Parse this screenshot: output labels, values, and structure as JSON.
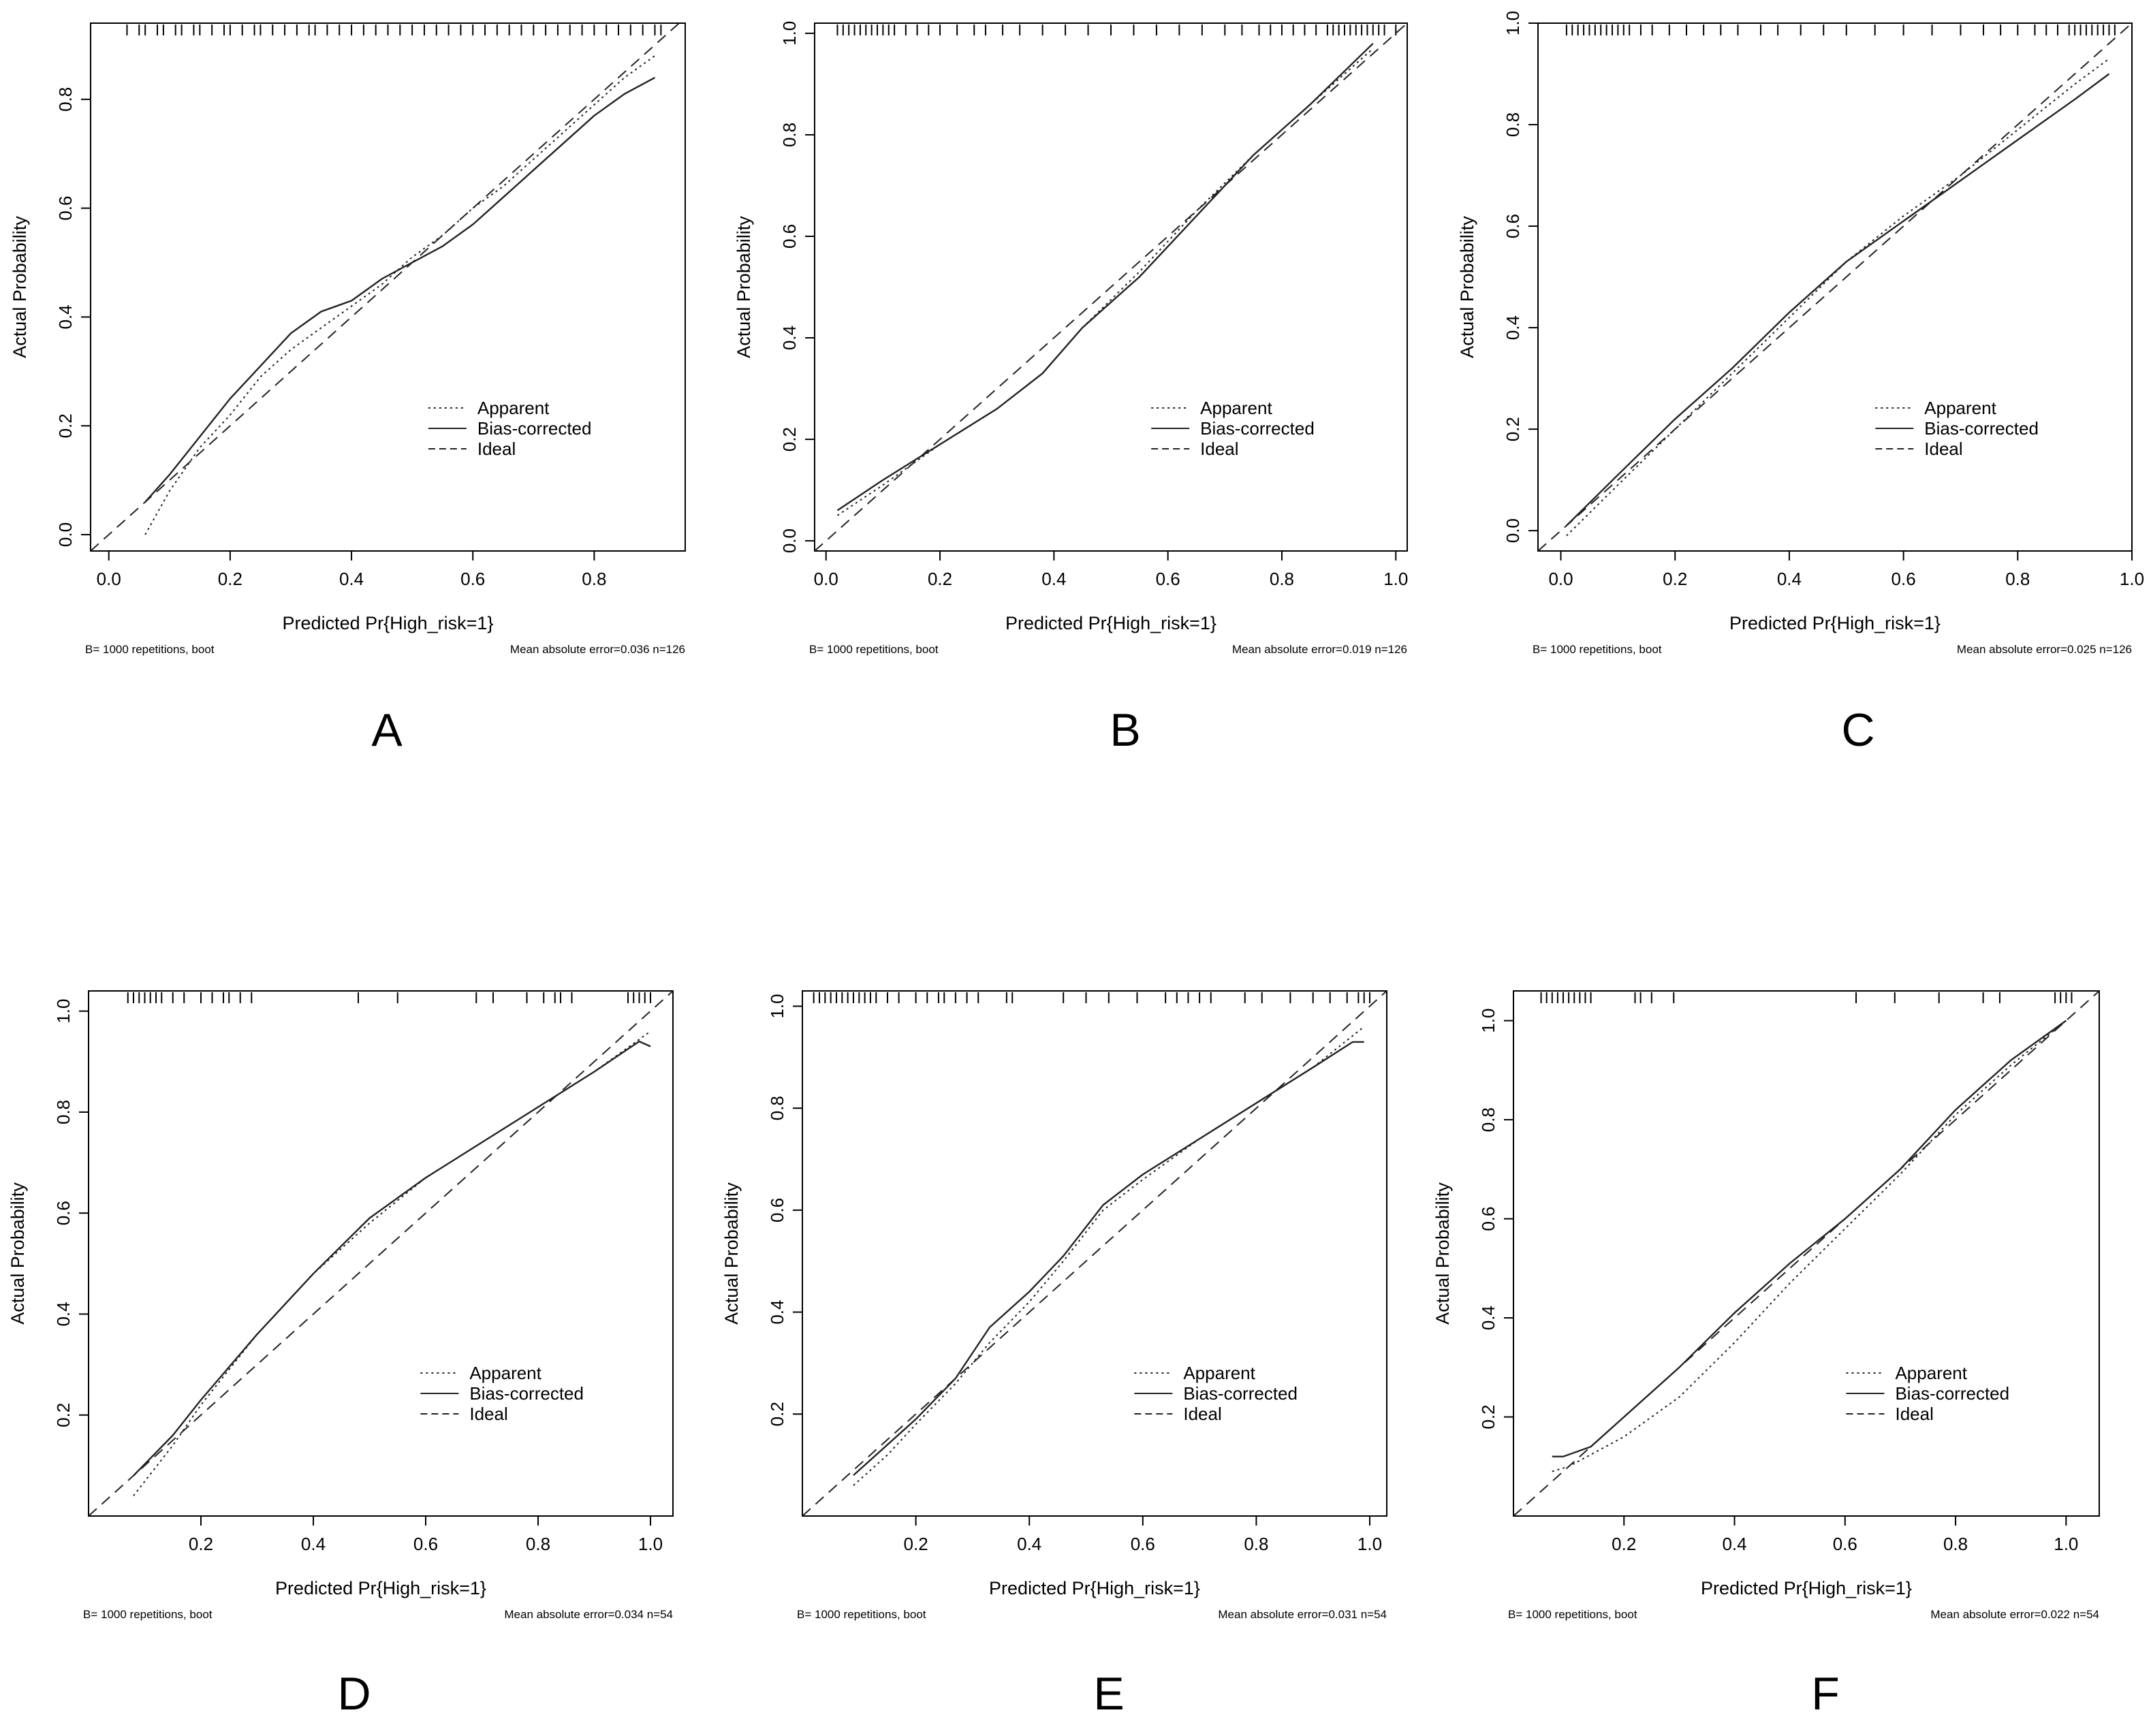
{
  "figure": {
    "ticks_rug_note": "rug ticks along top show predicted values",
    "panels_caption": "calibration curves"
  },
  "chart_data": [
    {
      "type": "line",
      "panel_label": "A",
      "xlabel": "Predicted Pr{High_risk=1}",
      "ylabel": "Actual Probability",
      "xlim": [
        -0.03,
        0.95
      ],
      "ylim": [
        -0.03,
        0.94
      ],
      "xticks": [
        "0.0",
        "0.2",
        "0.4",
        "0.6",
        "0.8"
      ],
      "yticks": [
        "0.0",
        "0.2",
        "0.4",
        "0.6",
        "0.8"
      ],
      "xtick_values": [
        0,
        0.2,
        0.4,
        0.6,
        0.8
      ],
      "ytick_values": [
        0,
        0.2,
        0.4,
        0.6,
        0.8
      ],
      "legend": [
        "Apparent",
        "Bias-corrected",
        "Ideal"
      ],
      "footer_left": "B= 1000 repetitions, boot",
      "footer_right": "Mean absolute error=0.036 n=126",
      "series": [
        {
          "name": "Apparent",
          "style": "dotted",
          "x": [
            0.06,
            0.1,
            0.15,
            0.2,
            0.25,
            0.3,
            0.35,
            0.4,
            0.45,
            0.5,
            0.55,
            0.6,
            0.65,
            0.7,
            0.75,
            0.8,
            0.85,
            0.9
          ],
          "y": [
            0.0,
            0.08,
            0.16,
            0.22,
            0.29,
            0.34,
            0.38,
            0.42,
            0.46,
            0.51,
            0.55,
            0.6,
            0.64,
            0.69,
            0.74,
            0.79,
            0.84,
            0.88
          ]
        },
        {
          "name": "Bias-corrected",
          "style": "solid",
          "x": [
            0.06,
            0.1,
            0.15,
            0.2,
            0.25,
            0.3,
            0.35,
            0.4,
            0.45,
            0.5,
            0.55,
            0.6,
            0.65,
            0.7,
            0.75,
            0.8,
            0.85,
            0.9
          ],
          "y": [
            0.06,
            0.11,
            0.18,
            0.25,
            0.31,
            0.37,
            0.41,
            0.43,
            0.47,
            0.5,
            0.53,
            0.57,
            0.62,
            0.67,
            0.72,
            0.77,
            0.81,
            0.84
          ]
        },
        {
          "name": "Ideal",
          "style": "dashed",
          "x": [
            -0.03,
            0.94
          ],
          "y": [
            -0.03,
            0.94
          ]
        }
      ],
      "rug": [
        0.03,
        0.05,
        0.06,
        0.08,
        0.09,
        0.11,
        0.12,
        0.14,
        0.15,
        0.17,
        0.19,
        0.2,
        0.22,
        0.24,
        0.25,
        0.27,
        0.29,
        0.31,
        0.33,
        0.34,
        0.36,
        0.38,
        0.4,
        0.42,
        0.44,
        0.46,
        0.48,
        0.5,
        0.52,
        0.54,
        0.56,
        0.58,
        0.6,
        0.62,
        0.64,
        0.66,
        0.68,
        0.7,
        0.72,
        0.74,
        0.76,
        0.78,
        0.8,
        0.82,
        0.84,
        0.86,
        0.88,
        0.9,
        0.91
      ]
    },
    {
      "type": "line",
      "panel_label": "B",
      "xlabel": "Predicted Pr{High_risk=1}",
      "ylabel": "Actual Probability",
      "xlim": [
        -0.02,
        1.02
      ],
      "ylim": [
        -0.02,
        1.02
      ],
      "xticks": [
        "0.0",
        "0.2",
        "0.4",
        "0.6",
        "0.8",
        "1.0"
      ],
      "yticks": [
        "0.0",
        "0.2",
        "0.4",
        "0.6",
        "0.8",
        "1.0"
      ],
      "xtick_values": [
        0,
        0.2,
        0.4,
        0.6,
        0.8,
        1.0
      ],
      "ytick_values": [
        0,
        0.2,
        0.4,
        0.6,
        0.8,
        1.0
      ],
      "legend": [
        "Apparent",
        "Bias-corrected",
        "Ideal"
      ],
      "footer_left": "B= 1000 repetitions, boot",
      "footer_right": "Mean absolute error=0.019 n=126",
      "series": [
        {
          "name": "Apparent",
          "style": "dotted",
          "x": [
            0.02,
            0.1,
            0.2,
            0.3,
            0.38,
            0.45,
            0.55,
            0.65,
            0.75,
            0.85,
            0.96
          ],
          "y": [
            0.05,
            0.11,
            0.19,
            0.26,
            0.33,
            0.42,
            0.53,
            0.65,
            0.76,
            0.86,
            0.97
          ]
        },
        {
          "name": "Bias-corrected",
          "style": "solid",
          "x": [
            0.02,
            0.1,
            0.2,
            0.3,
            0.38,
            0.45,
            0.55,
            0.65,
            0.75,
            0.85,
            0.96
          ],
          "y": [
            0.06,
            0.12,
            0.19,
            0.26,
            0.33,
            0.42,
            0.52,
            0.64,
            0.76,
            0.86,
            0.98
          ]
        },
        {
          "name": "Ideal",
          "style": "dashed",
          "x": [
            -0.02,
            1.02
          ],
          "y": [
            -0.02,
            1.02
          ]
        }
      ],
      "rug": [
        0.02,
        0.03,
        0.04,
        0.05,
        0.06,
        0.07,
        0.08,
        0.09,
        0.1,
        0.11,
        0.12,
        0.14,
        0.16,
        0.18,
        0.2,
        0.23,
        0.26,
        0.28,
        0.31,
        0.34,
        0.38,
        0.42,
        0.46,
        0.5,
        0.54,
        0.58,
        0.62,
        0.66,
        0.7,
        0.73,
        0.76,
        0.78,
        0.8,
        0.82,
        0.84,
        0.86,
        0.88,
        0.89,
        0.9,
        0.91,
        0.92,
        0.93,
        0.94,
        0.95,
        0.96,
        0.97,
        0.98,
        1.0
      ]
    },
    {
      "type": "line",
      "panel_label": "C",
      "xlabel": "Predicted Pr{High_risk=1}",
      "ylabel": "Actual Probability",
      "xlim": [
        -0.04,
        1.0
      ],
      "ylim": [
        -0.04,
        1.0
      ],
      "xticks": [
        "0.0",
        "0.2",
        "0.4",
        "0.6",
        "0.8",
        "1.0"
      ],
      "yticks": [
        "0.0",
        "0.2",
        "0.4",
        "0.6",
        "0.8",
        "1.0"
      ],
      "xtick_values": [
        0,
        0.2,
        0.4,
        0.6,
        0.8,
        1.0
      ],
      "ytick_values": [
        0,
        0.2,
        0.4,
        0.6,
        0.8,
        1.0
      ],
      "legend": [
        "Apparent",
        "Bias-corrected",
        "Ideal"
      ],
      "footer_left": "B= 1000 repetitions, boot",
      "footer_right": "Mean absolute error=0.025 n=126",
      "series": [
        {
          "name": "Apparent",
          "style": "dotted",
          "x": [
            0.01,
            0.1,
            0.2,
            0.3,
            0.4,
            0.5,
            0.6,
            0.7,
            0.8,
            0.9,
            0.96
          ],
          "y": [
            -0.01,
            0.09,
            0.2,
            0.31,
            0.42,
            0.53,
            0.62,
            0.7,
            0.79,
            0.88,
            0.93
          ]
        },
        {
          "name": "Bias-corrected",
          "style": "solid",
          "x": [
            0.01,
            0.1,
            0.2,
            0.3,
            0.4,
            0.5,
            0.6,
            0.7,
            0.8,
            0.9,
            0.96
          ],
          "y": [
            0.01,
            0.11,
            0.22,
            0.32,
            0.43,
            0.53,
            0.61,
            0.69,
            0.77,
            0.85,
            0.9
          ]
        },
        {
          "name": "Ideal",
          "style": "dashed",
          "x": [
            -0.04,
            1.0
          ],
          "y": [
            -0.04,
            1.0
          ]
        }
      ],
      "rug": [
        0.01,
        0.02,
        0.03,
        0.04,
        0.05,
        0.06,
        0.07,
        0.08,
        0.09,
        0.1,
        0.11,
        0.12,
        0.14,
        0.16,
        0.19,
        0.22,
        0.25,
        0.28,
        0.31,
        0.35,
        0.38,
        0.42,
        0.46,
        0.5,
        0.55,
        0.6,
        0.65,
        0.7,
        0.74,
        0.77,
        0.8,
        0.83,
        0.85,
        0.87,
        0.89,
        0.9,
        0.91,
        0.92,
        0.93,
        0.94,
        0.95,
        0.96,
        0.97
      ]
    },
    {
      "type": "line",
      "panel_label": "D",
      "xlabel": "Predicted Pr{High_risk=1}",
      "ylabel": "Actual Probability",
      "xlim": [
        0.0,
        1.04
      ],
      "ylim": [
        0.0,
        1.04
      ],
      "xticks": [
        "0.2",
        "0.4",
        "0.6",
        "0.8",
        "1.0"
      ],
      "yticks": [
        "0.2",
        "0.4",
        "0.6",
        "0.8",
        "1.0"
      ],
      "xtick_values": [
        0.2,
        0.4,
        0.6,
        0.8,
        1.0
      ],
      "ytick_values": [
        0.2,
        0.4,
        0.6,
        0.8,
        1.0
      ],
      "legend": [
        "Apparent",
        "Bias-corrected",
        "Ideal"
      ],
      "footer_left": "B= 1000 repetitions, boot",
      "footer_right": "Mean absolute error=0.034 n=54",
      "series": [
        {
          "name": "Apparent",
          "style": "dotted",
          "x": [
            0.08,
            0.15,
            0.2,
            0.3,
            0.4,
            0.5,
            0.6,
            0.7,
            0.8,
            0.9,
            1.0
          ],
          "y": [
            0.04,
            0.14,
            0.22,
            0.36,
            0.48,
            0.58,
            0.67,
            0.74,
            0.81,
            0.88,
            0.96
          ]
        },
        {
          "name": "Bias-corrected",
          "style": "solid",
          "x": [
            0.08,
            0.15,
            0.2,
            0.3,
            0.4,
            0.5,
            0.6,
            0.7,
            0.8,
            0.9,
            0.98,
            1.0
          ],
          "y": [
            0.08,
            0.16,
            0.23,
            0.36,
            0.48,
            0.59,
            0.67,
            0.74,
            0.81,
            0.88,
            0.94,
            0.93
          ]
        },
        {
          "name": "Ideal",
          "style": "dashed",
          "x": [
            0.0,
            1.04
          ],
          "y": [
            0.0,
            1.04
          ]
        }
      ],
      "rug": [
        0.07,
        0.08,
        0.09,
        0.1,
        0.11,
        0.12,
        0.13,
        0.15,
        0.17,
        0.2,
        0.22,
        0.24,
        0.25,
        0.27,
        0.29,
        0.48,
        0.55,
        0.69,
        0.72,
        0.78,
        0.81,
        0.83,
        0.84,
        0.86,
        0.96,
        0.97,
        0.98,
        0.99,
        1.0
      ]
    },
    {
      "type": "line",
      "panel_label": "E",
      "xlabel": "Predicted Pr{High_risk=1}",
      "ylabel": "Actual Probability",
      "xlim": [
        0.0,
        1.03
      ],
      "ylim": [
        0.0,
        1.03
      ],
      "xticks": [
        "0.2",
        "0.4",
        "0.6",
        "0.8",
        "1.0"
      ],
      "yticks": [
        "0.2",
        "0.4",
        "0.6",
        "0.8",
        "1.0"
      ],
      "xtick_values": [
        0.2,
        0.4,
        0.6,
        0.8,
        1.0
      ],
      "ytick_values": [
        0.2,
        0.4,
        0.6,
        0.8,
        1.0
      ],
      "legend": [
        "Apparent",
        "Bias-corrected",
        "Ideal"
      ],
      "footer_left": "B= 1000 repetitions, boot",
      "footer_right": "Mean absolute error=0.031 n=54",
      "series": [
        {
          "name": "Apparent",
          "style": "dotted",
          "x": [
            0.09,
            0.15,
            0.2,
            0.27,
            0.33,
            0.4,
            0.46,
            0.53,
            0.6,
            0.7,
            0.8,
            0.9,
            0.99
          ],
          "y": [
            0.06,
            0.12,
            0.18,
            0.26,
            0.34,
            0.42,
            0.5,
            0.6,
            0.66,
            0.74,
            0.81,
            0.88,
            0.96
          ]
        },
        {
          "name": "Bias-corrected",
          "style": "solid",
          "x": [
            0.09,
            0.15,
            0.2,
            0.27,
            0.33,
            0.4,
            0.46,
            0.53,
            0.6,
            0.7,
            0.8,
            0.9,
            0.97,
            0.99
          ],
          "y": [
            0.08,
            0.14,
            0.19,
            0.27,
            0.37,
            0.44,
            0.51,
            0.61,
            0.67,
            0.74,
            0.81,
            0.88,
            0.93,
            0.93
          ]
        },
        {
          "name": "Ideal",
          "style": "dashed",
          "x": [
            0.0,
            1.03
          ],
          "y": [
            0.0,
            1.03
          ]
        }
      ],
      "rug": [
        0.02,
        0.03,
        0.04,
        0.05,
        0.06,
        0.07,
        0.08,
        0.09,
        0.1,
        0.11,
        0.12,
        0.13,
        0.15,
        0.17,
        0.2,
        0.22,
        0.24,
        0.25,
        0.27,
        0.29,
        0.31,
        0.36,
        0.37,
        0.46,
        0.5,
        0.54,
        0.59,
        0.64,
        0.66,
        0.68,
        0.7,
        0.72,
        0.78,
        0.81,
        0.86,
        0.9,
        0.93,
        0.96,
        0.98,
        0.99,
        1.0
      ]
    },
    {
      "type": "line",
      "panel_label": "F",
      "xlabel": "Predicted Pr{High_risk=1}",
      "ylabel": "Actual Probability",
      "xlim": [
        0.0,
        1.06
      ],
      "ylim": [
        0.0,
        1.06
      ],
      "xticks": [
        "0.2",
        "0.4",
        "0.6",
        "0.8",
        "1.0"
      ],
      "yticks": [
        "0.2",
        "0.4",
        "0.6",
        "0.8",
        "1.0"
      ],
      "xtick_values": [
        0.2,
        0.4,
        0.6,
        0.8,
        1.0
      ],
      "ytick_values": [
        0.2,
        0.4,
        0.6,
        0.8,
        1.0
      ],
      "legend": [
        "Apparent",
        "Bias-corrected",
        "Ideal"
      ],
      "footer_left": "B= 1000 repetitions, boot",
      "footer_right": "Mean absolute error=0.022 n=54",
      "series": [
        {
          "name": "Apparent",
          "style": "dotted",
          "x": [
            0.07,
            0.1,
            0.2,
            0.3,
            0.4,
            0.5,
            0.6,
            0.7,
            0.8,
            0.9,
            1.0
          ],
          "y": [
            0.09,
            0.1,
            0.16,
            0.24,
            0.35,
            0.47,
            0.58,
            0.69,
            0.81,
            0.91,
            1.0
          ]
        },
        {
          "name": "Bias-corrected",
          "style": "solid",
          "x": [
            0.07,
            0.09,
            0.14,
            0.2,
            0.3,
            0.4,
            0.5,
            0.6,
            0.7,
            0.8,
            0.9,
            1.0
          ],
          "y": [
            0.12,
            0.12,
            0.14,
            0.2,
            0.3,
            0.41,
            0.51,
            0.6,
            0.7,
            0.82,
            0.92,
            1.0
          ]
        },
        {
          "name": "Ideal",
          "style": "dashed",
          "x": [
            0.0,
            1.06
          ],
          "y": [
            0.0,
            1.06
          ]
        }
      ],
      "rug": [
        0.05,
        0.06,
        0.07,
        0.08,
        0.09,
        0.1,
        0.11,
        0.12,
        0.13,
        0.14,
        0.22,
        0.23,
        0.25,
        0.29,
        0.62,
        0.69,
        0.77,
        0.85,
        0.88,
        0.98,
        0.99,
        1.0,
        1.01
      ]
    }
  ]
}
